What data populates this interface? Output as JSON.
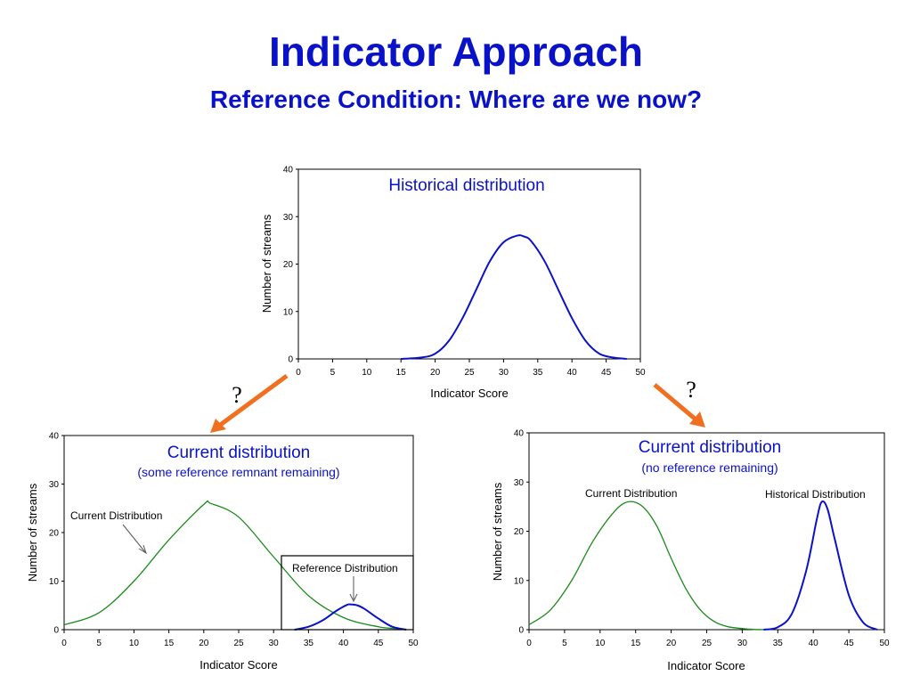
{
  "slide": {
    "title": "Indicator Approach",
    "subtitle": "Reference Condition: Where are we now?",
    "question_mark_left": "?",
    "question_mark_right": "?"
  },
  "colors": {
    "title": "#0a12c8",
    "historical": "#0a12c8",
    "current": "#1a8a1a",
    "arrow": "#f07020"
  },
  "chart_data": [
    {
      "type": "line",
      "title": "Historical distribution",
      "subtitle": "",
      "xlabel": "Indicator Score",
      "ylabel": "Number of streams",
      "xlim": [
        0,
        50
      ],
      "ylim": [
        0,
        40
      ],
      "xticks": [
        "0",
        "5",
        "10",
        "15",
        "20",
        "25",
        "30",
        "35",
        "40",
        "45",
        "50"
      ],
      "yticks": [
        "0",
        "10",
        "20",
        "30",
        "40"
      ],
      "annotations": [],
      "series": [
        {
          "color": "#0a12c8",
          "points": [
            [
              15,
              0
            ],
            [
              18,
              0.3
            ],
            [
              20,
              1.1
            ],
            [
              22,
              3.8
            ],
            [
              24,
              8.6
            ],
            [
              26,
              14.6
            ],
            [
              28,
              20.6
            ],
            [
              30,
              24.6
            ],
            [
              32,
              26
            ],
            [
              33,
              25.8
            ],
            [
              34,
              24.9
            ],
            [
              36,
              20.6
            ],
            [
              38,
              14.6
            ],
            [
              40,
              8.6
            ],
            [
              42,
              3.8
            ],
            [
              44,
              1.1
            ],
            [
              46,
              0.3
            ],
            [
              48,
              0
            ]
          ]
        }
      ]
    },
    {
      "type": "line",
      "title": "Current distribution",
      "subtitle": "(some reference remnant remaining)",
      "xlabel": "Indicator Score",
      "ylabel": "Number of streams",
      "xlim": [
        0,
        50
      ],
      "ylim": [
        0,
        40
      ],
      "xticks": [
        "0",
        "5",
        "10",
        "15",
        "20",
        "25",
        "30",
        "35",
        "40",
        "45",
        "50"
      ],
      "yticks": [
        "0",
        "10",
        "20",
        "30",
        "40"
      ],
      "annotations": [
        {
          "text": "Current Distribution"
        },
        {
          "text": "Reference Distribution"
        }
      ],
      "series": [
        {
          "color": "#1a8a1a",
          "points": [
            [
              0,
              1
            ],
            [
              5,
              3.5
            ],
            [
              10,
              10
            ],
            [
              15,
              18.5
            ],
            [
              20,
              25.8
            ],
            [
              21,
              26
            ],
            [
              25,
              23.2
            ],
            [
              30,
              15
            ],
            [
              35,
              7
            ],
            [
              40,
              2.5
            ],
            [
              45,
              0.6
            ],
            [
              48,
              0.2
            ]
          ]
        },
        {
          "color": "#0a12c8",
          "points": [
            [
              33,
              0
            ],
            [
              35,
              0.6
            ],
            [
              37,
              1.9
            ],
            [
              39,
              3.9
            ],
            [
              40.5,
              5.1
            ],
            [
              41,
              5.2
            ],
            [
              42,
              5
            ],
            [
              43,
              4.3
            ],
            [
              45,
              2.3
            ],
            [
              47,
              0.6
            ],
            [
              49,
              0
            ]
          ]
        }
      ]
    },
    {
      "type": "line",
      "title": "Current distribution",
      "subtitle": "(no reference remaining)",
      "xlabel": "Indicator Score",
      "ylabel": "Number of streams",
      "xlim": [
        0,
        50
      ],
      "ylim": [
        0,
        40
      ],
      "xticks": [
        "0",
        "5",
        "10",
        "15",
        "20",
        "25",
        "30",
        "35",
        "40",
        "45",
        "50"
      ],
      "yticks": [
        "0",
        "10",
        "20",
        "30",
        "40"
      ],
      "annotations": [
        {
          "text": "Current Distribution"
        },
        {
          "text": "Historical Distribution"
        }
      ],
      "series": [
        {
          "color": "#1a8a1a",
          "points": [
            [
              0,
              1
            ],
            [
              3,
              4
            ],
            [
              6,
              10
            ],
            [
              9,
              18
            ],
            [
              12,
              24
            ],
            [
              14,
              26
            ],
            [
              16,
              25
            ],
            [
              18,
              21
            ],
            [
              20,
              14.5
            ],
            [
              22,
              8.5
            ],
            [
              24,
              4.2
            ],
            [
              26,
              1.7
            ],
            [
              28,
              0.6
            ],
            [
              31,
              0.1
            ],
            [
              33,
              0
            ]
          ]
        },
        {
          "color": "#0a12c8",
          "points": [
            [
              33,
              0
            ],
            [
              35,
              0.5
            ],
            [
              37,
              3.3
            ],
            [
              39,
              12
            ],
            [
              40.5,
              22.5
            ],
            [
              41.2,
              26
            ],
            [
              42,
              24.5
            ],
            [
              43,
              18.5
            ],
            [
              45,
              7
            ],
            [
              47,
              1.5
            ],
            [
              49,
              0
            ]
          ]
        }
      ]
    }
  ]
}
